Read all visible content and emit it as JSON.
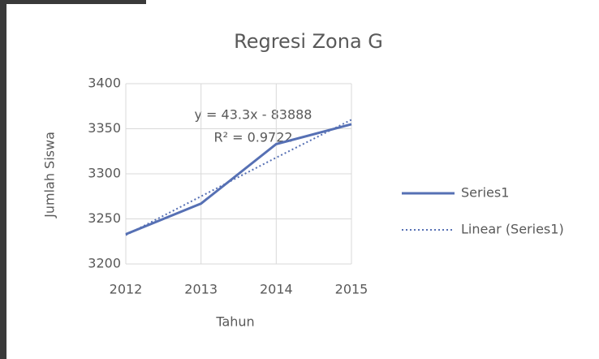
{
  "chart_data": {
    "type": "line",
    "title": "Regresi Zona G",
    "x_label": "Tahun",
    "y_label": "Jumlah Siswa",
    "annotations": [
      "y = 43.3x - 83888",
      "R² = 0.9722"
    ],
    "categories": [
      "2012",
      "2013",
      "2014",
      "2015"
    ],
    "series": [
      {
        "name": "Series1",
        "color": "#5670b4",
        "style": "solid",
        "values": [
          3233,
          3267,
          3333,
          3355
        ]
      },
      {
        "name": "Linear (Series1)",
        "color": "#5670b4",
        "style": "dotted",
        "values": [
          3232,
          3275,
          3318,
          3360
        ]
      }
    ],
    "ylim": [
      3200,
      3400
    ],
    "yticks": [
      3200,
      3250,
      3300,
      3350,
      3400
    ],
    "grid": true,
    "legend": "right"
  }
}
